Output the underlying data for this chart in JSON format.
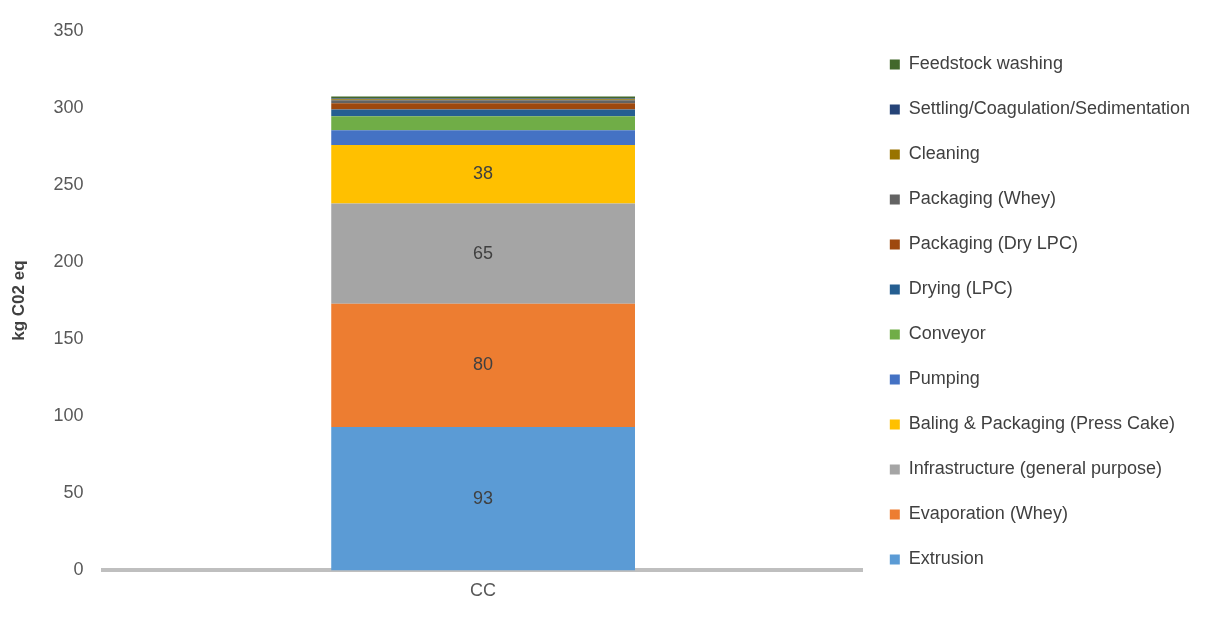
{
  "chart_data": {
    "type": "bar",
    "stacked": true,
    "ylabel": "kg C02 eq",
    "categories": [
      "CC"
    ],
    "ylim": [
      0,
      350
    ],
    "yticks": [
      0,
      50,
      100,
      150,
      200,
      250,
      300,
      350
    ],
    "grid": false,
    "legend": "right",
    "series": [
      {
        "name": "Extrusion",
        "color": "#5b9bd5",
        "values": [
          93
        ],
        "value_labels": [
          "93"
        ]
      },
      {
        "name": "Evaporation (Whey)",
        "color": "#ed7d31",
        "values": [
          80
        ],
        "value_labels": [
          "80"
        ]
      },
      {
        "name": "Infrastructure (general purpose)",
        "color": "#a5a5a5",
        "values": [
          65
        ],
        "value_labels": [
          "65"
        ]
      },
      {
        "name": "Baling & Packaging (Press Cake)",
        "color": "#ffc000",
        "values": [
          38
        ],
        "value_labels": [
          "38"
        ]
      },
      {
        "name": "Pumping",
        "color": "#4472c4",
        "values": [
          9.5
        ]
      },
      {
        "name": "Conveyor",
        "color": "#70ad47",
        "values": [
          9
        ]
      },
      {
        "name": "Drying (LPC)",
        "color": "#255e91",
        "values": [
          4.5
        ]
      },
      {
        "name": "Packaging (Dry LPC)",
        "color": "#9e480e",
        "values": [
          4
        ]
      },
      {
        "name": "Packaging (Whey)",
        "color": "#636363",
        "values": [
          2
        ]
      },
      {
        "name": "Cleaning",
        "color": "#997300",
        "values": [
          0.6
        ]
      },
      {
        "name": "Settling/Coagulation/Sedimentation",
        "color": "#264478",
        "values": [
          0.5
        ]
      },
      {
        "name": "Feedstock washing",
        "color": "#43682b",
        "values": [
          1.3
        ]
      }
    ]
  }
}
